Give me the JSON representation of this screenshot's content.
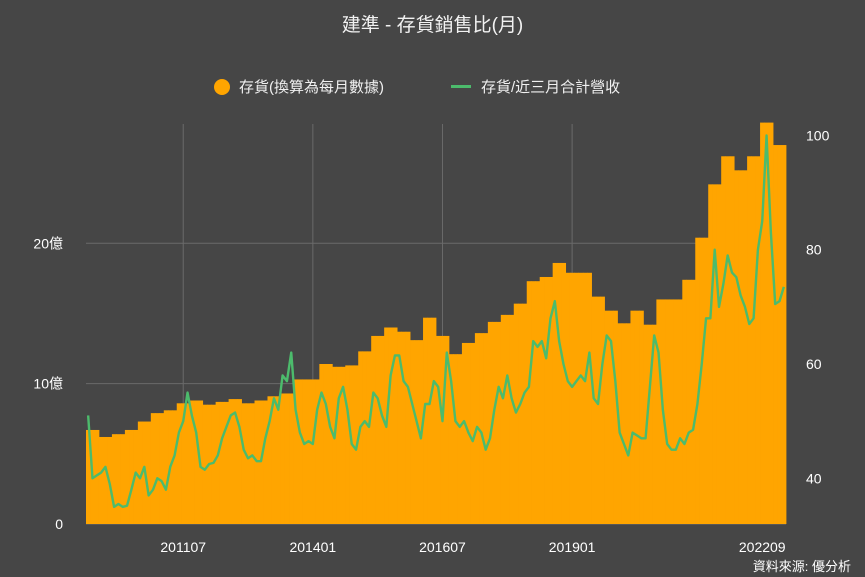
{
  "title": "建準 - 存貨銷售比(月)",
  "source": "資料來源: 優分析",
  "colors": {
    "bar": "#FFA500",
    "line": "#4CBB6C",
    "grid": "#6a6a6a",
    "background": "#464646"
  },
  "chart_data": {
    "type": "bar",
    "legend_position": "top",
    "grid": true,
    "x_ticks": [
      "201107",
      "201401",
      "201607",
      "201901",
      "202209"
    ],
    "left_axis": {
      "ticks": [
        "0",
        "10億",
        "20億"
      ],
      "range": [
        0,
        28.5
      ]
    },
    "right_axis": {
      "ticks": [
        "40",
        "60",
        "80",
        "100"
      ],
      "range": [
        32,
        102
      ]
    },
    "series": [
      {
        "name": "存貨(換算為每月數據)",
        "type": "bar",
        "axis": "left",
        "values": [
          6.7,
          6.7,
          6.7,
          6.2,
          6.2,
          6.2,
          6.4,
          6.4,
          6.4,
          6.7,
          6.7,
          6.7,
          7.3,
          7.3,
          7.3,
          7.9,
          7.9,
          7.9,
          8.1,
          8.1,
          8.1,
          8.6,
          8.6,
          8.6,
          8.8,
          8.8,
          8.8,
          8.5,
          8.5,
          8.5,
          8.7,
          8.7,
          8.7,
          8.9,
          8.9,
          8.9,
          8.6,
          8.6,
          8.6,
          8.8,
          8.8,
          8.8,
          9.1,
          9.1,
          9.1,
          9.3,
          9.3,
          9.3,
          10.3,
          10.3,
          10.3,
          10.3,
          10.3,
          10.3,
          11.4,
          11.4,
          11.4,
          11.2,
          11.2,
          11.2,
          11.3,
          11.3,
          11.3,
          12.3,
          12.3,
          12.3,
          13.4,
          13.4,
          13.4,
          14.0,
          14.0,
          14.0,
          13.7,
          13.7,
          13.7,
          13.1,
          13.1,
          13.1,
          14.7,
          14.7,
          14.7,
          13.4,
          13.4,
          13.4,
          12.1,
          12.1,
          12.1,
          12.9,
          12.9,
          12.9,
          13.6,
          13.6,
          13.6,
          14.4,
          14.4,
          14.4,
          14.9,
          14.9,
          14.9,
          15.7,
          15.7,
          15.7,
          17.3,
          17.3,
          17.3,
          17.6,
          17.6,
          17.6,
          18.6,
          18.6,
          18.6,
          17.9,
          17.9,
          17.9,
          17.9,
          17.9,
          17.9,
          16.2,
          16.2,
          16.2,
          15.2,
          15.2,
          15.2,
          14.3,
          14.3,
          14.3,
          15.2,
          15.2,
          15.2,
          14.2,
          14.2,
          14.2,
          16.0,
          16.0,
          16.0,
          16.0,
          16.0,
          16.0,
          17.4,
          17.4,
          17.4,
          20.4,
          20.4,
          20.4,
          24.2,
          24.2,
          24.2,
          26.2,
          26.2,
          26.2,
          25.2,
          25.2,
          25.2,
          26.2,
          26.2,
          26.2,
          28.6,
          28.6,
          28.6,
          27.0,
          27.0,
          27.0
        ]
      },
      {
        "name": "存貨/近三月合計營收",
        "type": "line",
        "axis": "right",
        "values": [
          51,
          40,
          40.5,
          41,
          42,
          39,
          35,
          35.5,
          35,
          35.2,
          38,
          41,
          40,
          42,
          37,
          38,
          40,
          39.5,
          38,
          42,
          44,
          48,
          50,
          55,
          51,
          48,
          42,
          41.5,
          42.5,
          42.7,
          44,
          47,
          49,
          51,
          51.5,
          49,
          45,
          43.5,
          44,
          43,
          43,
          47,
          50,
          54,
          52,
          58,
          57,
          62,
          52,
          48,
          46,
          46.5,
          46,
          52,
          55,
          53,
          49,
          47,
          54,
          56,
          52,
          46,
          45,
          49,
          50,
          49,
          55,
          54,
          51,
          49,
          58,
          61.5,
          61.5,
          57,
          56,
          53,
          50,
          47,
          53,
          53,
          57,
          56,
          50,
          62,
          57,
          50,
          49,
          50,
          48,
          46.5,
          49,
          48,
          45,
          47,
          52,
          56,
          54,
          58,
          54,
          51.5,
          53,
          55,
          56,
          64,
          63,
          64,
          61,
          68,
          71,
          64,
          60,
          57,
          56,
          57,
          58,
          57,
          62,
          54,
          53,
          60,
          65,
          64,
          57,
          48,
          46,
          44,
          48,
          47.5,
          47,
          47,
          56,
          65,
          62,
          52,
          46,
          45,
          45,
          47,
          46,
          48,
          48.5,
          53,
          60,
          68,
          68,
          80,
          70,
          74,
          79,
          76,
          75.2,
          72,
          70,
          67,
          68,
          80,
          85,
          100,
          83,
          70.5,
          71,
          73.5
        ]
      }
    ]
  }
}
